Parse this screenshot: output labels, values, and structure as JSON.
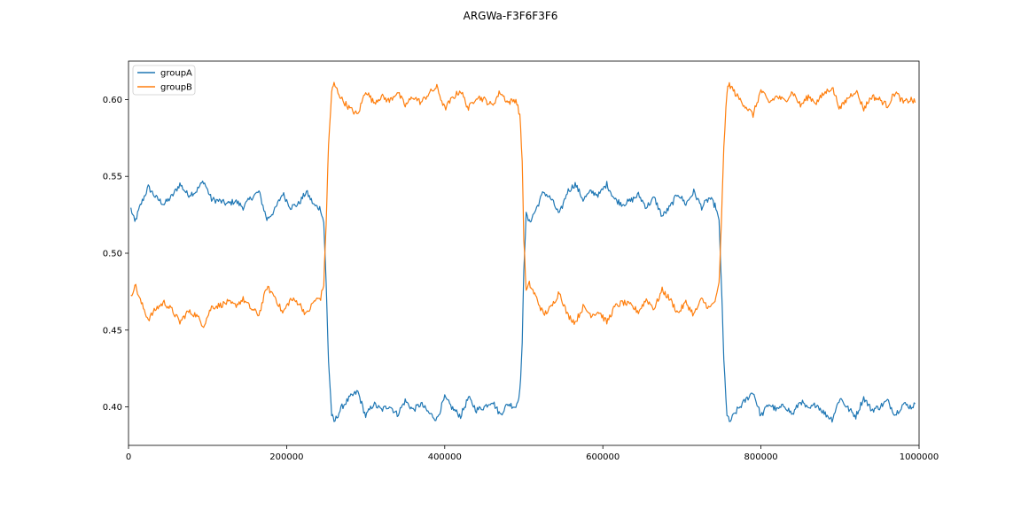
{
  "chart_data": {
    "type": "line",
    "title": "ARGWa-F3F6F3F6",
    "xlabel": "",
    "ylabel": "",
    "xlim": [
      0,
      1000000
    ],
    "ylim": [
      0.375,
      0.625
    ],
    "x_ticks": [
      0,
      200000,
      400000,
      600000,
      800000,
      1000000
    ],
    "x_tick_labels": [
      "0",
      "200000",
      "400000",
      "600000",
      "800000",
      "1000000"
    ],
    "y_ticks": [
      0.4,
      0.45,
      0.5,
      0.55,
      0.6
    ],
    "y_tick_labels": [
      "0.40",
      "0.45",
      "0.50",
      "0.55",
      "0.60"
    ],
    "grid": false,
    "legend_position": "upper-left",
    "series": [
      {
        "name": "groupA",
        "color": "#1f77b4",
        "x": [
          3000,
          8000,
          15000,
          25000,
          35000,
          45000,
          55000,
          65000,
          75000,
          85000,
          95000,
          105000,
          115000,
          125000,
          135000,
          145000,
          155000,
          165000,
          175000,
          185000,
          195000,
          205000,
          215000,
          225000,
          235000,
          243000,
          247000,
          250000,
          253000,
          257000,
          260000,
          270000,
          280000,
          290000,
          300000,
          310000,
          320000,
          330000,
          340000,
          350000,
          360000,
          370000,
          380000,
          390000,
          400000,
          410000,
          420000,
          430000,
          440000,
          450000,
          460000,
          470000,
          480000,
          490000,
          495000,
          498000,
          500000,
          503000,
          507000,
          515000,
          525000,
          535000,
          545000,
          555000,
          565000,
          575000,
          585000,
          595000,
          605000,
          615000,
          625000,
          635000,
          645000,
          655000,
          665000,
          675000,
          685000,
          695000,
          705000,
          715000,
          725000,
          735000,
          743000,
          747000,
          750000,
          753000,
          757000,
          760000,
          770000,
          780000,
          790000,
          800000,
          810000,
          820000,
          830000,
          840000,
          850000,
          860000,
          870000,
          880000,
          890000,
          900000,
          910000,
          920000,
          930000,
          940000,
          950000,
          960000,
          970000,
          980000,
          990000,
          995000
        ],
        "y": [
          0.529,
          0.52,
          0.531,
          0.543,
          0.536,
          0.532,
          0.537,
          0.545,
          0.538,
          0.54,
          0.547,
          0.535,
          0.534,
          0.532,
          0.534,
          0.53,
          0.536,
          0.54,
          0.522,
          0.528,
          0.539,
          0.53,
          0.532,
          0.54,
          0.531,
          0.529,
          0.52,
          0.48,
          0.43,
          0.395,
          0.39,
          0.4,
          0.406,
          0.41,
          0.394,
          0.402,
          0.398,
          0.401,
          0.395,
          0.404,
          0.398,
          0.402,
          0.396,
          0.392,
          0.406,
          0.399,
          0.394,
          0.406,
          0.398,
          0.4,
          0.404,
          0.395,
          0.402,
          0.4,
          0.41,
          0.44,
          0.49,
          0.525,
          0.52,
          0.528,
          0.54,
          0.535,
          0.525,
          0.54,
          0.545,
          0.535,
          0.54,
          0.538,
          0.545,
          0.535,
          0.532,
          0.534,
          0.538,
          0.53,
          0.536,
          0.524,
          0.53,
          0.539,
          0.532,
          0.54,
          0.53,
          0.536,
          0.53,
          0.52,
          0.48,
          0.43,
          0.395,
          0.39,
          0.398,
          0.404,
          0.41,
          0.394,
          0.402,
          0.398,
          0.401,
          0.395,
          0.404,
          0.398,
          0.402,
          0.396,
          0.392,
          0.406,
          0.399,
          0.394,
          0.406,
          0.398,
          0.4,
          0.404,
          0.395,
          0.402,
          0.4,
          0.402
        ]
      },
      {
        "name": "groupB",
        "color": "#ff7f0e",
        "x": [
          3000,
          8000,
          15000,
          25000,
          35000,
          45000,
          55000,
          65000,
          75000,
          85000,
          95000,
          105000,
          115000,
          125000,
          135000,
          145000,
          155000,
          165000,
          175000,
          185000,
          195000,
          205000,
          215000,
          225000,
          235000,
          243000,
          247000,
          250000,
          253000,
          257000,
          260000,
          270000,
          280000,
          290000,
          300000,
          310000,
          320000,
          330000,
          340000,
          350000,
          360000,
          370000,
          380000,
          390000,
          400000,
          410000,
          420000,
          430000,
          440000,
          450000,
          460000,
          470000,
          480000,
          490000,
          495000,
          498000,
          500000,
          503000,
          507000,
          515000,
          525000,
          535000,
          545000,
          555000,
          565000,
          575000,
          585000,
          595000,
          605000,
          615000,
          625000,
          635000,
          645000,
          655000,
          665000,
          675000,
          685000,
          695000,
          705000,
          715000,
          725000,
          735000,
          743000,
          747000,
          750000,
          753000,
          757000,
          760000,
          770000,
          780000,
          790000,
          800000,
          810000,
          820000,
          830000,
          840000,
          850000,
          860000,
          870000,
          880000,
          890000,
          900000,
          910000,
          920000,
          930000,
          940000,
          950000,
          960000,
          970000,
          980000,
          990000,
          995000
        ],
        "y": [
          0.471,
          0.48,
          0.469,
          0.457,
          0.464,
          0.468,
          0.463,
          0.455,
          0.462,
          0.46,
          0.453,
          0.465,
          0.466,
          0.468,
          0.466,
          0.47,
          0.464,
          0.46,
          0.478,
          0.472,
          0.461,
          0.47,
          0.468,
          0.46,
          0.469,
          0.471,
          0.48,
          0.52,
          0.57,
          0.605,
          0.61,
          0.6,
          0.594,
          0.59,
          0.606,
          0.598,
          0.602,
          0.599,
          0.605,
          0.596,
          0.602,
          0.598,
          0.604,
          0.608,
          0.594,
          0.601,
          0.606,
          0.594,
          0.602,
          0.6,
          0.596,
          0.605,
          0.598,
          0.6,
          0.59,
          0.56,
          0.51,
          0.475,
          0.48,
          0.472,
          0.46,
          0.465,
          0.475,
          0.46,
          0.455,
          0.465,
          0.46,
          0.462,
          0.455,
          0.465,
          0.468,
          0.466,
          0.462,
          0.47,
          0.464,
          0.476,
          0.47,
          0.461,
          0.468,
          0.46,
          0.47,
          0.464,
          0.47,
          0.48,
          0.52,
          0.57,
          0.605,
          0.61,
          0.602,
          0.596,
          0.59,
          0.606,
          0.598,
          0.602,
          0.599,
          0.605,
          0.596,
          0.602,
          0.598,
          0.604,
          0.608,
          0.594,
          0.601,
          0.606,
          0.594,
          0.602,
          0.6,
          0.596,
          0.605,
          0.598,
          0.6,
          0.598
        ]
      }
    ]
  }
}
